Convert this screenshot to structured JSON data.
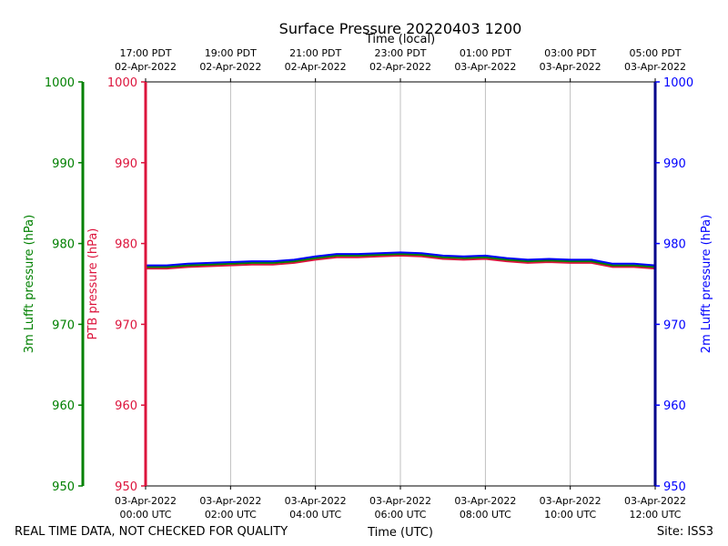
{
  "chart_data": {
    "type": "line",
    "title": "Surface Pressure 20220403 1200",
    "xlabel": "Time (UTC)",
    "top_xlabel": "Time (local)",
    "footer_left": "REAL TIME DATA, NOT CHECKED FOR QUALITY",
    "footer_right": "Site: ISS3",
    "xlim": [
      0,
      12
    ],
    "bottom_ticks": [
      {
        "x": 0,
        "line1": "03-Apr-2022",
        "line2": "00:00 UTC"
      },
      {
        "x": 2,
        "line1": "03-Apr-2022",
        "line2": "02:00 UTC"
      },
      {
        "x": 4,
        "line1": "03-Apr-2022",
        "line2": "04:00 UTC"
      },
      {
        "x": 6,
        "line1": "03-Apr-2022",
        "line2": "06:00 UTC"
      },
      {
        "x": 8,
        "line1": "03-Apr-2022",
        "line2": "08:00 UTC"
      },
      {
        "x": 10,
        "line1": "03-Apr-2022",
        "line2": "10:00 UTC"
      },
      {
        "x": 12,
        "line1": "03-Apr-2022",
        "line2": "12:00 UTC"
      }
    ],
    "top_ticks": [
      {
        "x": 0,
        "line1": "17:00 PDT",
        "line2": "02-Apr-2022"
      },
      {
        "x": 2,
        "line1": "19:00 PDT",
        "line2": "02-Apr-2022"
      },
      {
        "x": 4,
        "line1": "21:00 PDT",
        "line2": "02-Apr-2022"
      },
      {
        "x": 6,
        "line1": "23:00 PDT",
        "line2": "02-Apr-2022"
      },
      {
        "x": 8,
        "line1": "01:00 PDT",
        "line2": "03-Apr-2022"
      },
      {
        "x": 10,
        "line1": "03:00 PDT",
        "line2": "03-Apr-2022"
      },
      {
        "x": 12,
        "line1": "05:00 PDT",
        "line2": "03-Apr-2022"
      }
    ],
    "ylim": [
      950,
      1000
    ],
    "yticks": [
      950,
      960,
      970,
      980,
      990,
      1000
    ],
    "grid": "vertical",
    "axes": [
      {
        "label": "3m Lufft pressure (hPa)",
        "color": "#008000",
        "position": "far-left"
      },
      {
        "label": "PTB pressure (hPa)",
        "color": "#dc143c",
        "position": "left"
      },
      {
        "label": "2m Lufft pressure (hPa)",
        "color": "#0000ff",
        "position": "right"
      }
    ],
    "series": [
      {
        "color": "#dc143c",
        "x": [
          0,
          0.5,
          1,
          1.5,
          2,
          2.5,
          3,
          3.5,
          4,
          4.5,
          5,
          5.5,
          6,
          6.5,
          7,
          7.5,
          8,
          8.5,
          9,
          9.5,
          10,
          10.5,
          11,
          11.5,
          12
        ],
        "values": [
          976.9,
          976.9,
          977.1,
          977.2,
          977.3,
          977.4,
          977.4,
          977.6,
          978.0,
          978.3,
          978.3,
          978.4,
          978.5,
          978.4,
          978.1,
          978.0,
          978.1,
          977.8,
          977.6,
          977.7,
          977.6,
          977.6,
          977.1,
          977.1,
          976.9
        ]
      },
      {
        "color": "#008000",
        "x": [
          0,
          0.5,
          1,
          1.5,
          2,
          2.5,
          3,
          3.5,
          4,
          4.5,
          5,
          5.5,
          6,
          6.5,
          7,
          7.5,
          8,
          8.5,
          9,
          9.5,
          10,
          10.5,
          11,
          11.5,
          12
        ],
        "values": [
          977.1,
          977.1,
          977.3,
          977.4,
          977.5,
          977.6,
          977.6,
          977.8,
          978.2,
          978.5,
          978.5,
          978.6,
          978.7,
          978.6,
          978.3,
          978.2,
          978.3,
          978.0,
          977.8,
          977.9,
          977.8,
          977.8,
          977.3,
          977.3,
          977.1
        ]
      },
      {
        "color": "#0000ff",
        "x": [
          0,
          0.5,
          1,
          1.5,
          2,
          2.5,
          3,
          3.5,
          4,
          4.5,
          5,
          5.5,
          6,
          6.5,
          7,
          7.5,
          8,
          8.5,
          9,
          9.5,
          10,
          10.5,
          11,
          11.5,
          12
        ],
        "values": [
          977.3,
          977.3,
          977.5,
          977.6,
          977.7,
          977.8,
          977.8,
          978.0,
          978.4,
          978.7,
          978.7,
          978.8,
          978.9,
          978.8,
          978.5,
          978.4,
          978.5,
          978.2,
          978.0,
          978.1,
          978.0,
          978.0,
          977.5,
          977.5,
          977.3
        ]
      }
    ]
  }
}
